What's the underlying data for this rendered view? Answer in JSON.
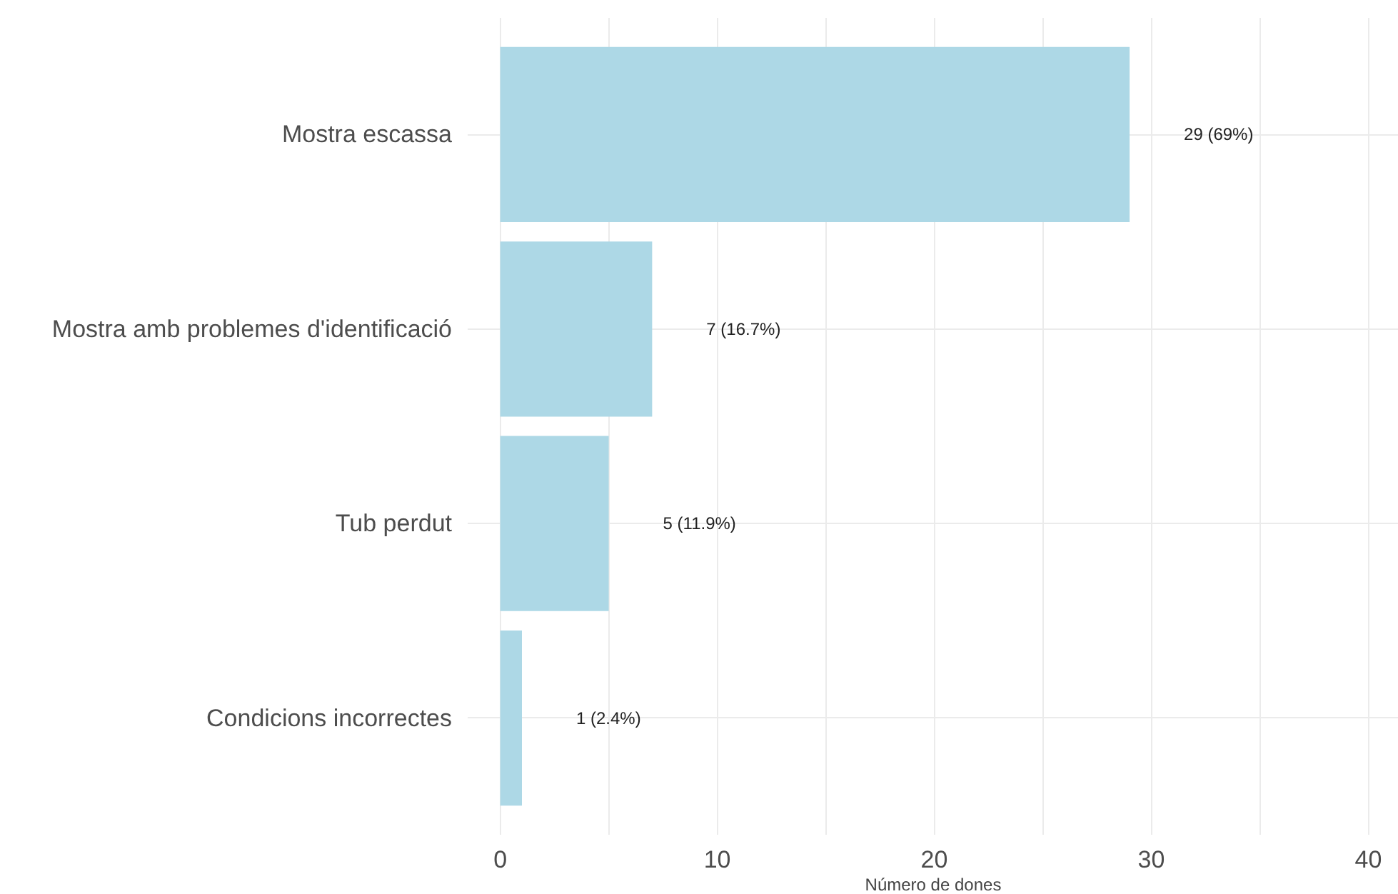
{
  "chart_data": {
    "type": "bar",
    "orientation": "horizontal",
    "xlabel": "Número de dones",
    "categories": [
      "Mostra escassa",
      "Mostra amb problemes d'identificació",
      "Tub perdut",
      "Condicions incorrectes"
    ],
    "values": [
      29,
      7,
      5,
      1
    ],
    "color": "#add8e6",
    "value_labels": [
      "29 (69%)",
      "7 (16.7%)",
      "5 (11.9%)",
      "1 (2.4%)"
    ],
    "xlim": [
      -1.5,
      41.4
    ],
    "xticks": [
      0,
      {
        "value": 5,
        "label": null
      },
      10,
      {
        "value": 15,
        "label": null
      },
      20,
      {
        "value": 25,
        "label": null
      },
      30,
      {
        "value": 35,
        "label": null
      },
      40
    ],
    "grid": true
  }
}
